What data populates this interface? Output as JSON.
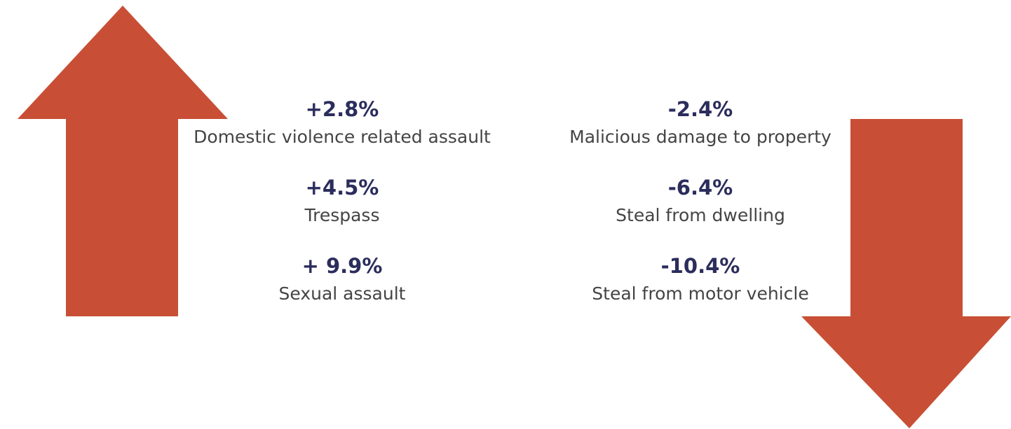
{
  "increases": [
    {
      "change": "+2.8%",
      "label": "Domestic violence related assault"
    },
    {
      "change": "+4.5%",
      "label": "Trespass"
    },
    {
      "change": "+ 9.9%",
      "label": "Sexual assault"
    }
  ],
  "decreases": [
    {
      "change": "-2.4%",
      "label": "Malicious damage to property"
    },
    {
      "change": "-6.4%",
      "label": "Steal from dwelling"
    },
    {
      "change": "-10.4%",
      "label": "Steal from motor vehicle"
    }
  ]
}
